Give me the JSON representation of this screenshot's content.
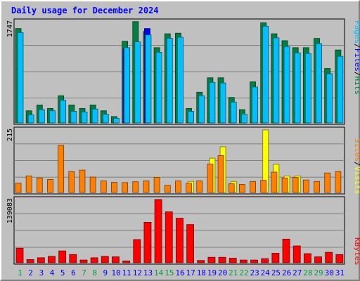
{
  "chart_data": {
    "type": "bar",
    "title": "Daily usage for December 2024",
    "days": [
      "1",
      "2",
      "3",
      "4",
      "5",
      "6",
      "7",
      "8",
      "9",
      "10",
      "11",
      "12",
      "13",
      "14",
      "15",
      "16",
      "17",
      "18",
      "19",
      "20",
      "21",
      "22",
      "23",
      "24",
      "25",
      "26",
      "27",
      "28",
      "29",
      "30",
      "31"
    ],
    "weekend_days": [
      "1",
      "7",
      "8",
      "14",
      "15",
      "21",
      "22",
      "28",
      "29"
    ],
    "hits_panel": {
      "max_label": "1747",
      "max_value": 1747,
      "series": [
        {
          "name": "Hits",
          "color": "#008040",
          "values": [
            1630,
            210,
            310,
            250,
            470,
            310,
            250,
            310,
            210,
            110,
            1410,
            1750,
            1580,
            1300,
            1540,
            1550,
            250,
            530,
            780,
            780,
            440,
            230,
            710,
            1730,
            1540,
            1420,
            1300,
            1300,
            1460,
            940,
            1260
          ]
        },
        {
          "name": "Files",
          "color": "#0000ff",
          "values": [
            0,
            0,
            0,
            0,
            0,
            0,
            0,
            0,
            0,
            0,
            1280,
            0,
            1630,
            0,
            0,
            0,
            0,
            0,
            0,
            0,
            0,
            0,
            0,
            0,
            0,
            0,
            0,
            0,
            0,
            0,
            0
          ]
        },
        {
          "name": "Pages",
          "color": "#00c0ff",
          "values": [
            1560,
            140,
            230,
            210,
            390,
            200,
            190,
            240,
            150,
            80,
            1300,
            1400,
            1520,
            1220,
            1460,
            1480,
            200,
            470,
            700,
            690,
            360,
            150,
            620,
            1670,
            1470,
            1320,
            1210,
            1200,
            1370,
            850,
            1150
          ]
        }
      ]
    },
    "visits_panel": {
      "max_label": "215",
      "max_value": 215,
      "series": [
        {
          "name": "Visits",
          "color": "#ffff00",
          "values": [
            0,
            0,
            0,
            0,
            0,
            0,
            0,
            0,
            0,
            0,
            0,
            0,
            0,
            0,
            0,
            0,
            38,
            0,
            118,
            157,
            38,
            0,
            0,
            215,
            97,
            57,
            57,
            0,
            0,
            0,
            0
          ]
        },
        {
          "name": "Sites",
          "color": "#ff8000",
          "values": [
            32,
            57,
            50,
            45,
            162,
            72,
            77,
            53,
            40,
            35,
            34,
            37,
            40,
            52,
            25,
            40,
            32,
            40,
            98,
            127,
            30,
            28,
            38,
            42,
            70,
            50,
            52,
            43,
            38,
            67,
            72
          ]
        }
      ]
    },
    "kbytes_panel": {
      "max_label": "139083",
      "max_value": 139083,
      "series": [
        {
          "name": "KBytes",
          "color": "#ff0000",
          "values": [
            32000,
            7000,
            11000,
            14000,
            26000,
            18000,
            6000,
            11000,
            14000,
            13000,
            4000,
            51000,
            89000,
            139083,
            112000,
            98000,
            84000,
            5000,
            12000,
            12000,
            10000,
            6000,
            6000,
            9000,
            21000,
            52000,
            37000,
            20000,
            13000,
            23000,
            18000
          ]
        }
      ]
    },
    "legends": {
      "top": [
        "Pages",
        "/",
        "Files",
        "/",
        "Hits"
      ],
      "mid": [
        "Sites",
        "/",
        "Visits"
      ],
      "bot": [
        "KBytes"
      ]
    },
    "colors": {
      "grid": "#808080",
      "axis_text": "#000000",
      "title": "#0000ff",
      "day_normal": "#0000ff",
      "day_weekend": "#00a040",
      "slash": "#000000"
    }
  }
}
